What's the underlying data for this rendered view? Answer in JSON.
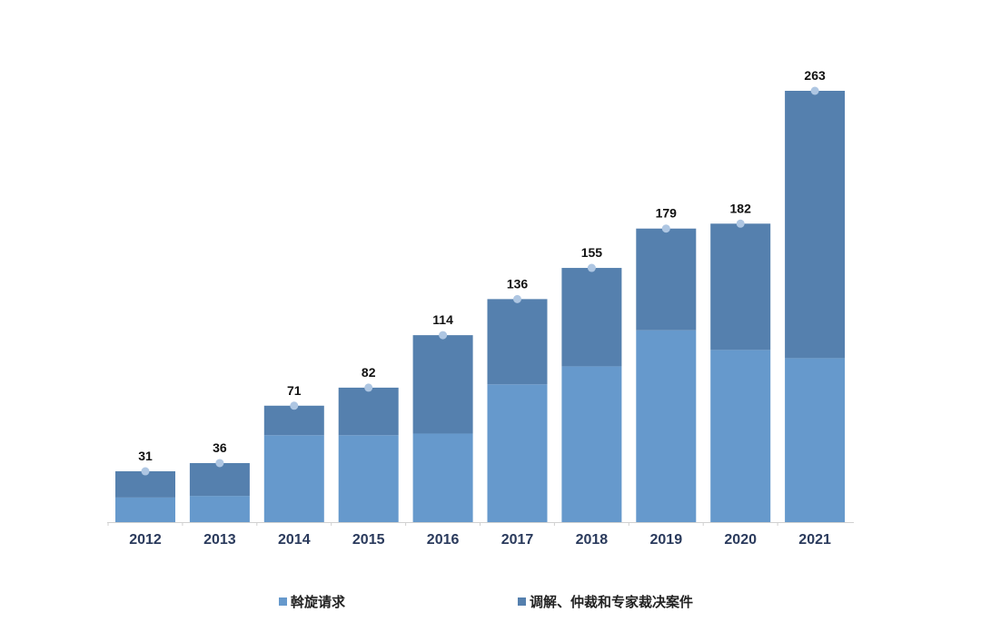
{
  "chart_data": {
    "type": "bar",
    "stacked": true,
    "title": "",
    "xlabel": "",
    "ylabel": "",
    "ylim": [
      0,
      270
    ],
    "grid": false,
    "legend_position": "bottom",
    "categories": [
      "2012",
      "2013",
      "2014",
      "2015",
      "2016",
      "2017",
      "2018",
      "2019",
      "2020",
      "2021"
    ],
    "series": [
      {
        "name": "斡旋请求",
        "color": "#6699cc",
        "values": [
          15,
          16,
          53,
          53,
          54,
          84,
          95,
          117,
          105,
          100
        ]
      },
      {
        "name": "调解、仲裁和专家裁决案件",
        "color": "#5580ae",
        "values": [
          16,
          20,
          18,
          29,
          60,
          52,
          60,
          62,
          77,
          163
        ]
      }
    ],
    "totals": [
      31,
      36,
      71,
      82,
      114,
      136,
      155,
      179,
      182,
      263
    ]
  },
  "legend": {
    "items": [
      {
        "label": "斡旋请求",
        "color": "#6699cc"
      },
      {
        "label": "调解、仲裁和专家裁决案件",
        "color": "#5580ae"
      }
    ]
  }
}
